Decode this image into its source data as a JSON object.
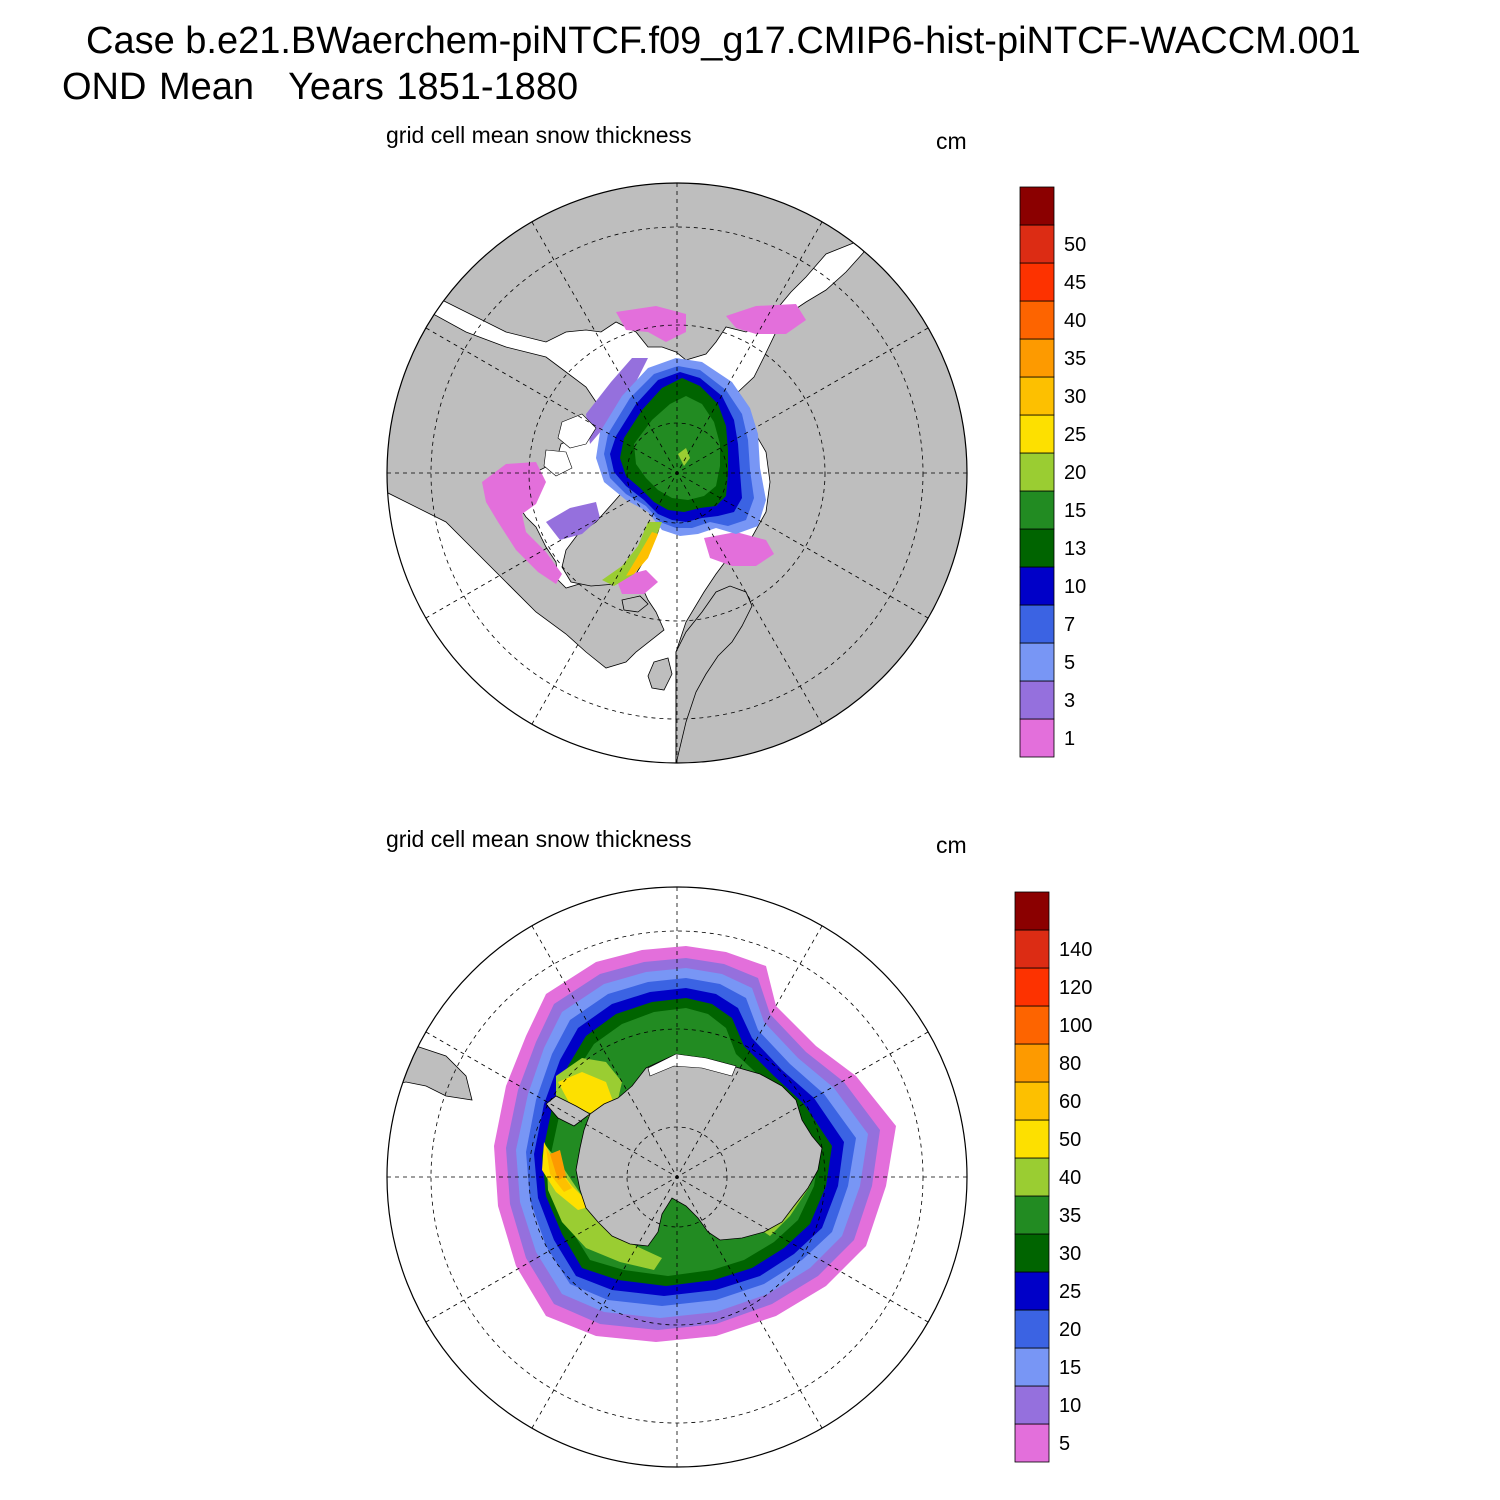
{
  "header": {
    "case_title": "Case b.e21.BWaerchem-piNTCF.f09_g17.CMIP6-hist-piNTCF-WACCM.001",
    "season": "OND Mean",
    "years": "Years 1851-1880"
  },
  "colors": {
    "land": "#bebebe",
    "ocean": "#ffffff",
    "palette": [
      "#e36fdb",
      "#9570dd",
      "#7896f5",
      "#3b63e3",
      "#0000c8",
      "#006400",
      "#228b22",
      "#9acd32",
      "#fde000",
      "#fdc000",
      "#fd9a00",
      "#fd6400",
      "#fd3200",
      "#dc2c14",
      "#8b0000"
    ]
  },
  "north": {
    "label": "grid cell mean snow thickness",
    "units": "cm",
    "legend_levels": [
      "1",
      "3",
      "5",
      "7",
      "10",
      "13",
      "15",
      "20",
      "25",
      "30",
      "35",
      "40",
      "45",
      "50"
    ]
  },
  "south": {
    "label": "grid cell mean snow thickness",
    "units": "cm",
    "legend_levels": [
      "5",
      "10",
      "15",
      "20",
      "25",
      "30",
      "35",
      "40",
      "50",
      "60",
      "80",
      "100",
      "120",
      "140"
    ]
  }
}
